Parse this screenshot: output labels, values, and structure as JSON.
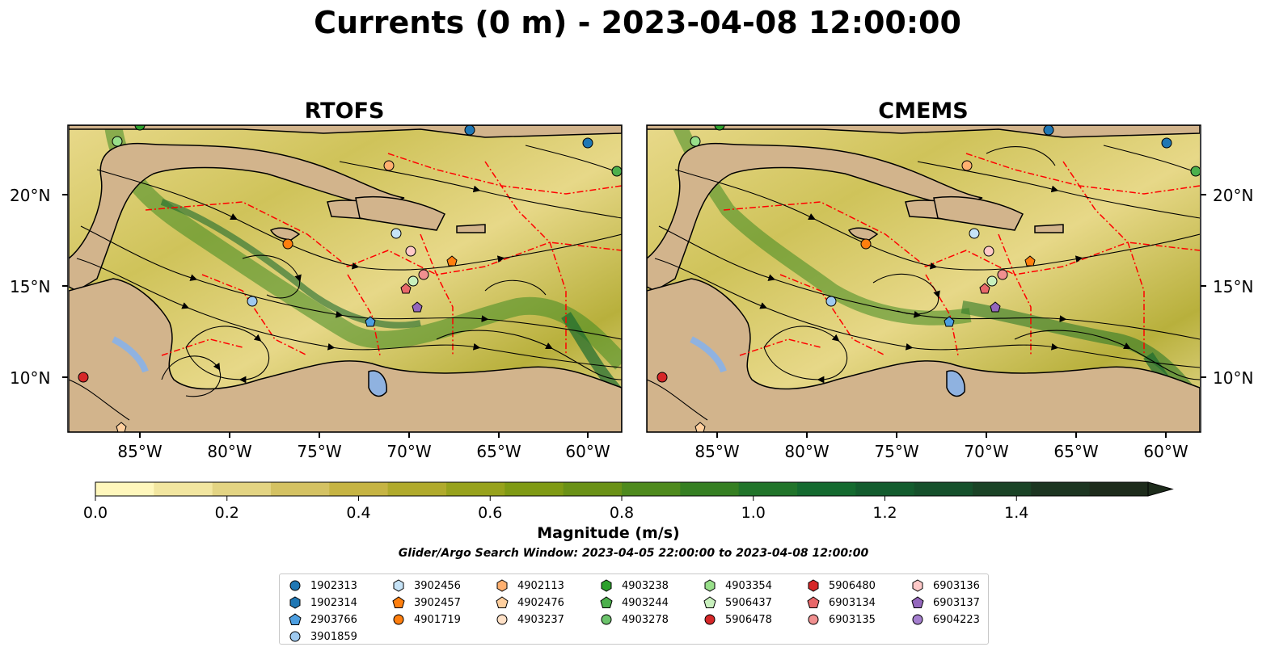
{
  "figure": {
    "title": "Currents (0 m) - 2023-04-08 12:00:00",
    "panels": [
      {
        "title": "RTOFS"
      },
      {
        "title": "CMEMS"
      }
    ],
    "lon_ticks": [
      "85°W",
      "80°W",
      "75°W",
      "70°W",
      "65°W",
      "60°W"
    ],
    "lat_ticks": [
      "20°N",
      "15°N",
      "10°N"
    ],
    "colors": {
      "land": "#d2b48c",
      "water_low": "#fff7bc",
      "water_mid": "#a3b42a",
      "water_high": "#1d6b2f",
      "lake": "#8fb2e0",
      "eez": "#ff0000"
    }
  },
  "colorbar": {
    "label": "Magnitude (m/s)",
    "ticks": [
      "0.0",
      "0.2",
      "0.4",
      "0.6",
      "0.8",
      "1.0",
      "1.2",
      "1.4"
    ],
    "range": [
      0,
      1.6
    ],
    "extend": "max",
    "colors": [
      "#fff7bc",
      "#f2e6a0",
      "#e3d483",
      "#d4c263",
      "#c6b443",
      "#b0aa2c",
      "#97a21c",
      "#7f9a14",
      "#6a9116",
      "#4e8a1d",
      "#357f22",
      "#21742a",
      "#146a2f",
      "#135c2e",
      "#15502b",
      "#1a4326",
      "#1c3521",
      "#1d2b1b"
    ]
  },
  "search_window": "Glider/Argo Search Window: 2023-04-05 22:00:00 to 2023-04-08 12:00:00",
  "legend": [
    {
      "id": "1902313",
      "marker": "circle",
      "color": "#1f77b4"
    },
    {
      "id": "1902314",
      "marker": "hexagon",
      "color": "#1f77b4"
    },
    {
      "id": "2903766",
      "marker": "pentagon",
      "color": "#4c9ee0"
    },
    {
      "id": "3901859",
      "marker": "circle",
      "color": "#9ec9ef"
    },
    {
      "id": "3902456",
      "marker": "hexagon",
      "color": "#c6e3f7"
    },
    {
      "id": "3902457",
      "marker": "pentagon",
      "color": "#ff7f0e"
    },
    {
      "id": "4901719",
      "marker": "circle",
      "color": "#ff7f0e"
    },
    {
      "id": "4902113",
      "marker": "hexagon",
      "color": "#ffb070"
    },
    {
      "id": "4902476",
      "marker": "pentagon",
      "color": "#ffcf9e"
    },
    {
      "id": "4903237",
      "marker": "circle",
      "color": "#ffe1c7"
    },
    {
      "id": "4903238",
      "marker": "hexagon",
      "color": "#2ca02c"
    },
    {
      "id": "4903244",
      "marker": "pentagon",
      "color": "#4cb04c"
    },
    {
      "id": "4903278",
      "marker": "circle",
      "color": "#6cc46c"
    },
    {
      "id": "4903354",
      "marker": "hexagon",
      "color": "#98df8a"
    },
    {
      "id": "5906437",
      "marker": "pentagon",
      "color": "#c8f0bd"
    },
    {
      "id": "5906478",
      "marker": "circle",
      "color": "#d62728"
    },
    {
      "id": "5906480",
      "marker": "hexagon",
      "color": "#d62728"
    },
    {
      "id": "6903134",
      "marker": "pentagon",
      "color": "#e8686a"
    },
    {
      "id": "6903135",
      "marker": "circle",
      "color": "#f09090"
    },
    {
      "id": "6903136",
      "marker": "hexagon",
      "color": "#ffc9c8"
    },
    {
      "id": "6903137",
      "marker": "pentagon",
      "color": "#9467bd"
    },
    {
      "id": "6904223",
      "marker": "circle",
      "color": "#a57fcf"
    }
  ],
  "floats_on_map": [
    {
      "id": "1902313",
      "lon": -86.0,
      "lat": 22.8
    },
    {
      "id": "1902314",
      "lon": -66.6,
      "lat": 23.4
    },
    {
      "id": "2903766",
      "lon": -72.1,
      "lat": 13.1
    },
    {
      "id": "3901859",
      "lon": -78.9,
      "lat": 14.2
    },
    {
      "id": "3902456",
      "lon": -70.5,
      "lat": 17.9
    },
    {
      "id": "3902457",
      "lon": -67.7,
      "lat": 16.4
    },
    {
      "id": "4901719",
      "lon": -77.2,
      "lat": 17.3
    },
    {
      "id": "4902113",
      "lon": -70.8,
      "lat": 21.6
    },
    {
      "id": "4902476",
      "lon": -86.0,
      "lat": 7.2
    },
    {
      "id": "4903238",
      "lon": -84.6,
      "lat": 23.6
    },
    {
      "id": "4903244",
      "lon": -58.3,
      "lat": 21.3
    },
    {
      "id": "4903354",
      "lon": -86.0,
      "lat": 22.9
    },
    {
      "id": "5906437",
      "lon": -69.7,
      "lat": 15.3
    },
    {
      "id": "5906478",
      "lon": -88.0,
      "lat": 10.1
    },
    {
      "id": "6903134",
      "lon": -70.1,
      "lat": 14.9
    },
    {
      "id": "6903135",
      "lon": -69.0,
      "lat": 15.7
    },
    {
      "id": "6903136",
      "lon": -69.9,
      "lat": 17.0
    },
    {
      "id": "6903137",
      "lon": -69.6,
      "lat": 13.9
    }
  ]
}
